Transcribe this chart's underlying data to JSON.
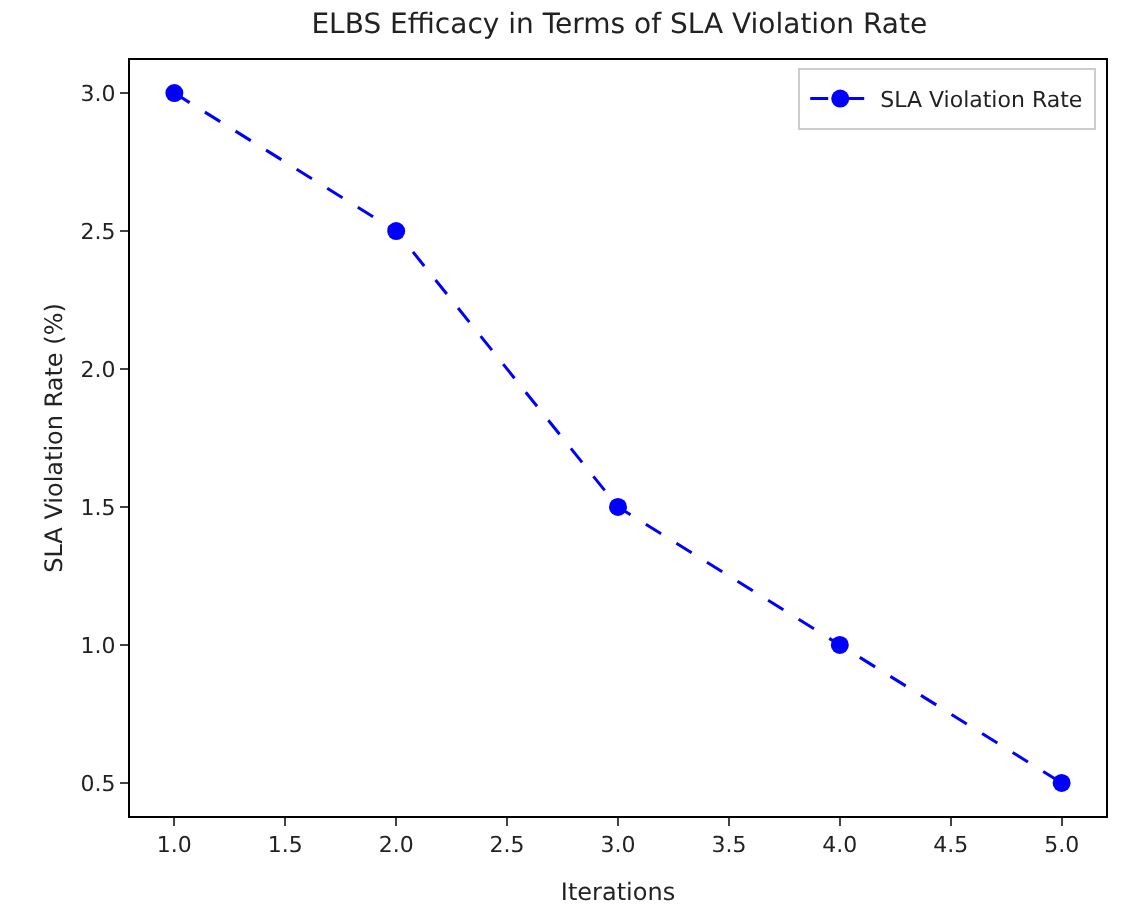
{
  "chart_data": {
    "type": "line",
    "title": "ELBS Efficacy in Terms of SLA Violation Rate",
    "xlabel": "Iterations",
    "ylabel": "SLA Violation Rate (%)",
    "x": [
      1,
      2,
      3,
      4,
      5
    ],
    "series": [
      {
        "name": "SLA Violation Rate",
        "color": "#0000ff",
        "values": [
          3.0,
          2.5,
          1.5,
          1.0,
          0.5
        ]
      }
    ],
    "xlim": [
      0.8,
      5.2
    ],
    "ylim": [
      0.38,
      3.12
    ],
    "xticks": [
      {
        "value": 1,
        "label": "1.0"
      },
      {
        "value": 1.5,
        "label": "1.5"
      },
      {
        "value": 2,
        "label": "2.0"
      },
      {
        "value": 2.5,
        "label": "2.5"
      },
      {
        "value": 3,
        "label": "3.0"
      },
      {
        "value": 3.5,
        "label": "3.5"
      },
      {
        "value": 4,
        "label": "4.0"
      },
      {
        "value": 4.5,
        "label": "4.5"
      },
      {
        "value": 5,
        "label": "5.0"
      }
    ],
    "yticks": [
      {
        "value": 0.5,
        "label": "0.5"
      },
      {
        "value": 1,
        "label": "1.0"
      },
      {
        "value": 1.5,
        "label": "1.5"
      },
      {
        "value": 2,
        "label": "2.0"
      },
      {
        "value": 2.5,
        "label": "2.5"
      },
      {
        "value": 3,
        "label": "3.0"
      }
    ],
    "marker": "circle",
    "line_style": "dashed",
    "legend": "top right",
    "grid": false
  }
}
